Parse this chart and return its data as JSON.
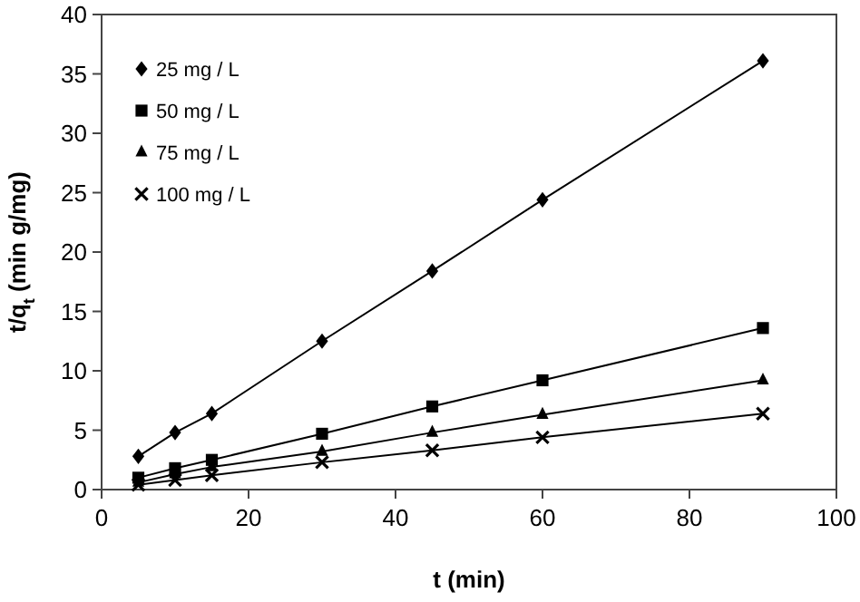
{
  "chart_data": {
    "type": "line",
    "xlabel": "t (min)",
    "ylabel": "t/q$_{t}$ (min g/mg)",
    "xlim": [
      0,
      100
    ],
    "xticks": [
      0,
      20,
      40,
      60,
      80,
      100
    ],
    "ylim": [
      0,
      40
    ],
    "yticks": [
      0,
      5,
      10,
      15,
      20,
      25,
      30,
      35,
      40
    ],
    "grid": false,
    "legend": "top left",
    "line_style": "solid",
    "x": [
      5,
      10,
      15,
      30,
      45,
      60,
      90
    ],
    "series": [
      {
        "name": "25 mg / L",
        "color": "#000000",
        "marker": "diamond",
        "values": [
          2.8,
          4.8,
          6.4,
          12.5,
          18.4,
          24.4,
          36.1
        ]
      },
      {
        "name": "50 mg / L",
        "color": "#000000",
        "marker": "square",
        "values": [
          1.0,
          1.8,
          2.5,
          4.7,
          7.0,
          9.2,
          13.6
        ]
      },
      {
        "name": "75 mg / L",
        "color": "#000000",
        "marker": "triangle",
        "values": [
          0.6,
          1.3,
          1.9,
          3.2,
          4.8,
          6.3,
          9.2
        ]
      },
      {
        "name": "100 mg / L",
        "color": "#000000",
        "marker": "cross",
        "values": [
          0.4,
          0.8,
          1.2,
          2.3,
          3.3,
          4.4,
          6.4
        ]
      }
    ]
  }
}
